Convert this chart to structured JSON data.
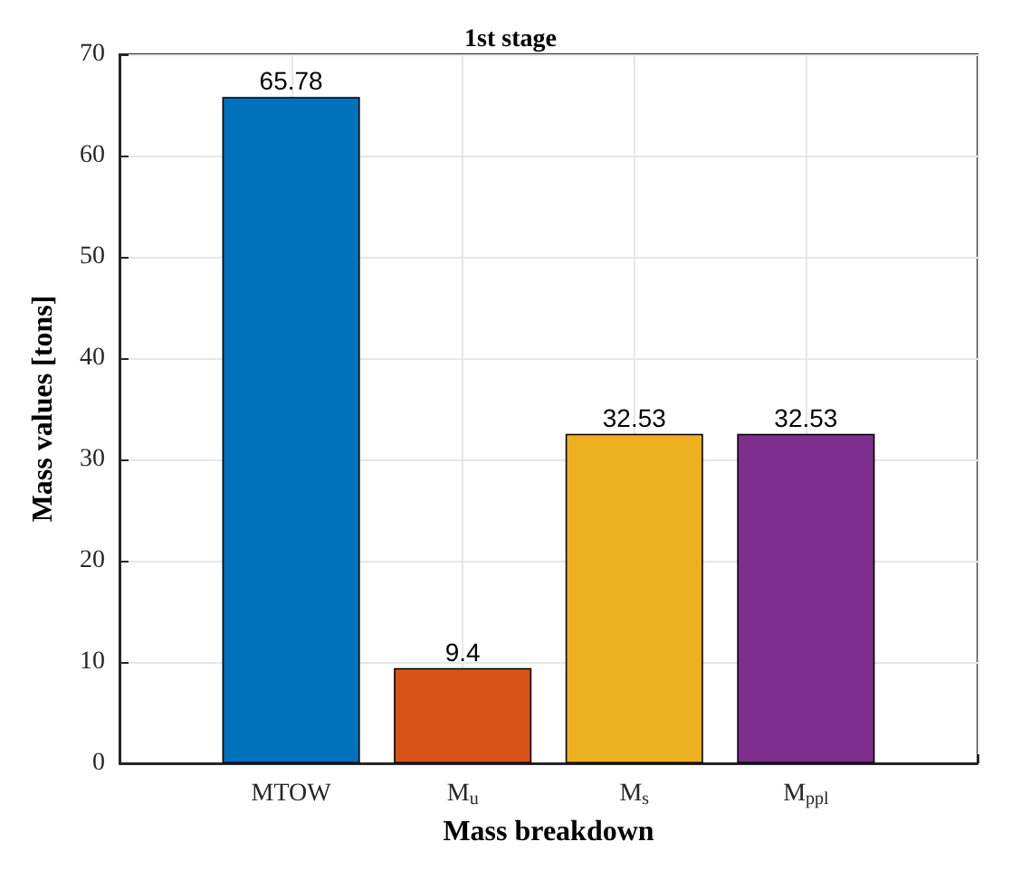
{
  "chart_data": {
    "type": "bar",
    "title": "1st stage",
    "xlabel": "Mass breakdown",
    "ylabel": "Mass values [tons]",
    "categories": [
      null,
      "MTOW",
      "M$_{u}$",
      "M$_{s}$",
      "M$_{ppl}$",
      null
    ],
    "values": [
      null,
      65.78,
      9.4,
      32.53,
      32.53,
      null
    ],
    "colors": [
      "#0072bd",
      "#0072bd",
      "#d95319",
      "#edb120",
      "#7e2f8e",
      "#7e2f8e"
    ],
    "ylim": [
      0,
      70
    ],
    "yticks": [
      0,
      10,
      20,
      30,
      40,
      50,
      60,
      70
    ],
    "grid": true,
    "data_labels": true
  }
}
